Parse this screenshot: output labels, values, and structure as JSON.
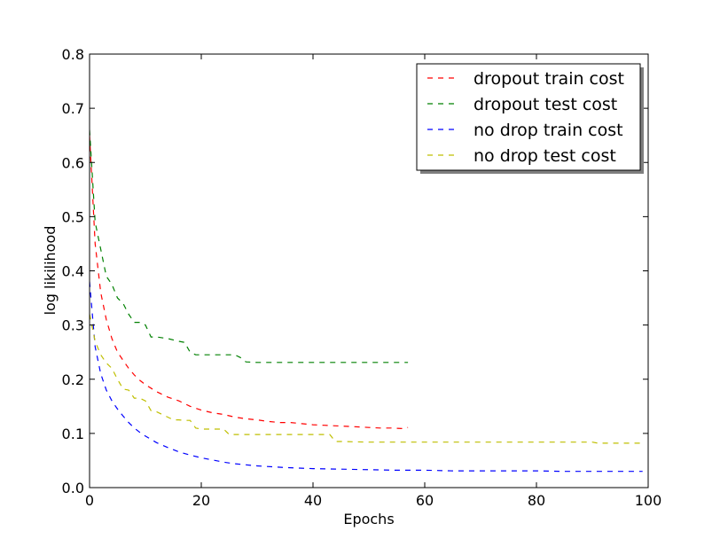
{
  "chart_data": {
    "type": "line",
    "xlabel": "Epochs",
    "ylabel": "log likilihood",
    "xlim": [
      0,
      100
    ],
    "ylim": [
      0,
      0.8
    ],
    "xticks": [
      0,
      20,
      40,
      60,
      80,
      100
    ],
    "yticks": [
      0.0,
      0.1,
      0.2,
      0.3,
      0.4,
      0.5,
      0.6,
      0.7,
      0.8
    ],
    "xtick_labels": [
      "0",
      "20",
      "40",
      "60",
      "80",
      "100"
    ],
    "ytick_labels": [
      "0.0",
      "0.1",
      "0.2",
      "0.3",
      "0.4",
      "0.5",
      "0.6",
      "0.7",
      "0.8"
    ],
    "grid": false,
    "legend_position": "top-right",
    "line_style": "dashed",
    "series": [
      {
        "name": "dropout train cost",
        "color": "#ff0000",
        "x": [
          0,
          1,
          2,
          3,
          4,
          5,
          6,
          7,
          8,
          9,
          10,
          12,
          14,
          16,
          18,
          20,
          22,
          24,
          26,
          28,
          30,
          32,
          34,
          36,
          38,
          40,
          42,
          44,
          46,
          48,
          50,
          52,
          54,
          56,
          57
        ],
        "y": [
          0.65,
          0.45,
          0.36,
          0.31,
          0.275,
          0.25,
          0.235,
          0.22,
          0.208,
          0.198,
          0.19,
          0.177,
          0.167,
          0.16,
          0.15,
          0.143,
          0.138,
          0.135,
          0.13,
          0.127,
          0.125,
          0.122,
          0.12,
          0.12,
          0.118,
          0.116,
          0.115,
          0.114,
          0.113,
          0.112,
          0.111,
          0.11,
          0.11,
          0.109,
          0.111
        ]
      },
      {
        "name": "dropout test cost",
        "color": "#008000",
        "x": [
          0,
          1,
          2,
          3,
          4,
          5,
          6,
          7,
          8,
          9,
          10,
          11,
          12,
          14,
          16,
          17,
          18,
          19,
          20,
          22,
          24,
          26,
          27,
          28,
          30,
          34,
          38,
          42,
          46,
          50,
          54,
          57
        ],
        "y": [
          0.66,
          0.49,
          0.44,
          0.39,
          0.375,
          0.35,
          0.34,
          0.32,
          0.305,
          0.305,
          0.3,
          0.278,
          0.278,
          0.275,
          0.27,
          0.268,
          0.25,
          0.245,
          0.245,
          0.245,
          0.245,
          0.245,
          0.24,
          0.232,
          0.231,
          0.231,
          0.231,
          0.231,
          0.231,
          0.231,
          0.231,
          0.231
        ]
      },
      {
        "name": "no drop train cost",
        "color": "#0000ff",
        "x": [
          0,
          1,
          2,
          3,
          4,
          5,
          6,
          7,
          8,
          9,
          10,
          12,
          14,
          16,
          18,
          20,
          22,
          24,
          26,
          28,
          30,
          35,
          40,
          45,
          50,
          55,
          60,
          65,
          70,
          75,
          80,
          85,
          90,
          95,
          99
        ],
        "y": [
          0.38,
          0.26,
          0.21,
          0.18,
          0.16,
          0.145,
          0.132,
          0.12,
          0.11,
          0.102,
          0.095,
          0.083,
          0.074,
          0.066,
          0.06,
          0.055,
          0.051,
          0.047,
          0.044,
          0.042,
          0.04,
          0.037,
          0.035,
          0.034,
          0.033,
          0.032,
          0.032,
          0.031,
          0.031,
          0.031,
          0.031,
          0.03,
          0.03,
          0.03,
          0.03
        ]
      },
      {
        "name": "no drop test cost",
        "color": "#bfbf00",
        "x": [
          0,
          1,
          2,
          3,
          4,
          5,
          6,
          7,
          8,
          9,
          10,
          11,
          12,
          13,
          14,
          15,
          16,
          17,
          18,
          19,
          20,
          23,
          24,
          25,
          30,
          35,
          40,
          43,
          44,
          45,
          50,
          60,
          70,
          80,
          90,
          91,
          95,
          99
        ],
        "y": [
          0.32,
          0.27,
          0.245,
          0.23,
          0.22,
          0.2,
          0.182,
          0.18,
          0.165,
          0.165,
          0.16,
          0.142,
          0.14,
          0.135,
          0.13,
          0.125,
          0.125,
          0.124,
          0.124,
          0.11,
          0.108,
          0.108,
          0.108,
          0.098,
          0.098,
          0.098,
          0.098,
          0.098,
          0.085,
          0.085,
          0.084,
          0.084,
          0.084,
          0.084,
          0.084,
          0.082,
          0.082,
          0.082
        ]
      }
    ]
  }
}
